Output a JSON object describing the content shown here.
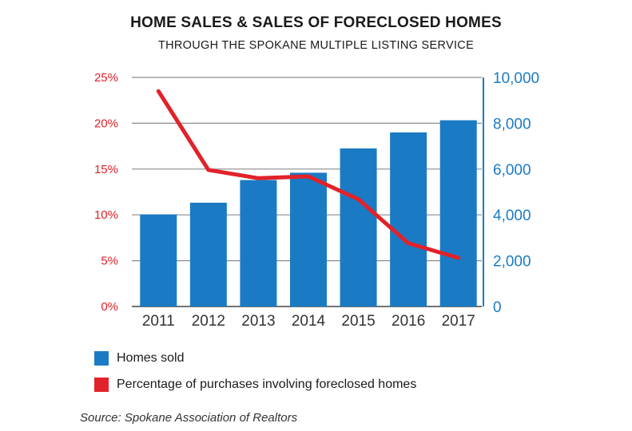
{
  "title": "HOME SALES & SALES OF FORECLOSED HOMES",
  "subtitle": "THROUGH THE SPOKANE MULTIPLE LISTING SERVICE",
  "colors": {
    "bar": "#1a7bc4",
    "line": "#e12229",
    "left_axis": "#e12229",
    "right_axis": "#1a7bc4",
    "grid": "#8c8c8c",
    "text": "#1a1a1a"
  },
  "chart_data": {
    "type": "bar",
    "categories": [
      "2011",
      "2012",
      "2013",
      "2014",
      "2015",
      "2016",
      "2017"
    ],
    "series": [
      {
        "name": "Homes sold",
        "type": "bar",
        "axis": "right",
        "values": [
          4020,
          4530,
          5520,
          5840,
          6900,
          7600,
          8130
        ]
      },
      {
        "name": "Percentage of purchases involving foreclosed homes",
        "type": "line",
        "axis": "left",
        "values": [
          23.5,
          14.9,
          14.0,
          14.2,
          11.7,
          6.9,
          5.3
        ]
      }
    ],
    "left_axis": {
      "ylim": [
        0,
        25
      ],
      "ticks": [
        "0%",
        "5%",
        "10%",
        "15%",
        "20%",
        "25%"
      ]
    },
    "right_axis": {
      "ylim": [
        0,
        10000
      ],
      "ticks": [
        "0",
        "2,000",
        "4,000",
        "6,000",
        "8,000",
        "10,000"
      ]
    },
    "grid": true,
    "legend_position": "bottom-left"
  },
  "legend": [
    {
      "label": "Homes sold",
      "color": "#1a7bc4"
    },
    {
      "label": "Percentage of purchases involving foreclosed homes",
      "color": "#e12229"
    }
  ],
  "source": "Source: Spokane Association of Realtors"
}
